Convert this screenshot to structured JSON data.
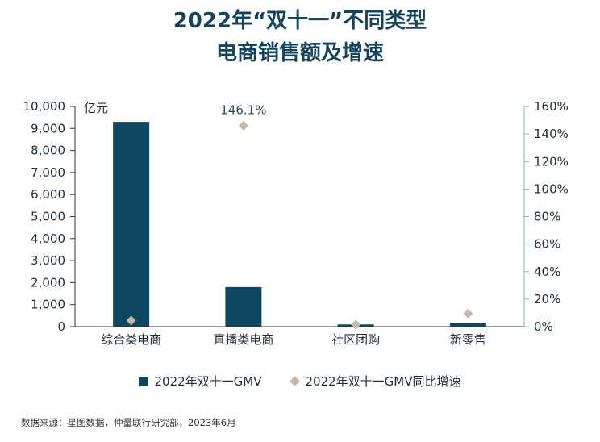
{
  "title": {
    "line1": "2022年“双十一”不同类型",
    "line2": "电商销售额及增速"
  },
  "chart_data": {
    "type": "bar",
    "categories": [
      "综合类电商",
      "直播类电商",
      "社区团购",
      "新零售"
    ],
    "series": [
      {
        "name": "2022年双十一GMV",
        "axis": "left",
        "chart_type": "bar",
        "values": [
          9300,
          1800,
          100,
          180
        ]
      },
      {
        "name": "2022年双十一GMV同比增速",
        "axis": "right",
        "chart_type": "scatter",
        "values": [
          4.5,
          146.1,
          1.5,
          9.5
        ]
      }
    ],
    "left_axis": {
      "unit": "亿元",
      "ylim": [
        0,
        10000
      ],
      "ticks": [
        "10,000",
        "9,000",
        "8,000",
        "7,000",
        "6,000",
        "5,000",
        "4,000",
        "3,000",
        "2,000",
        "1,000",
        "0"
      ]
    },
    "right_axis": {
      "ylim": [
        0,
        160
      ],
      "ticks": [
        "160%",
        "140%",
        "120%",
        "100%",
        "80%",
        "60%",
        "40%",
        "20%",
        "0%"
      ]
    },
    "annotations": [
      {
        "category": "直播类电商",
        "series": "2022年双十一GMV同比增速",
        "text": "146.1%"
      }
    ],
    "legend_position": "bottom",
    "colors": {
      "bar": "#0f4760",
      "marker": "#c9b7a6",
      "right_axis": "#7fb3c8",
      "left_axis": "#333333"
    }
  },
  "legend": {
    "bar_label": "2022年双十一GMV",
    "marker_label": "2022年双十一GMV同比增速"
  },
  "source": "数据来源：星图数据，仲量联行研究部，2023年6月"
}
